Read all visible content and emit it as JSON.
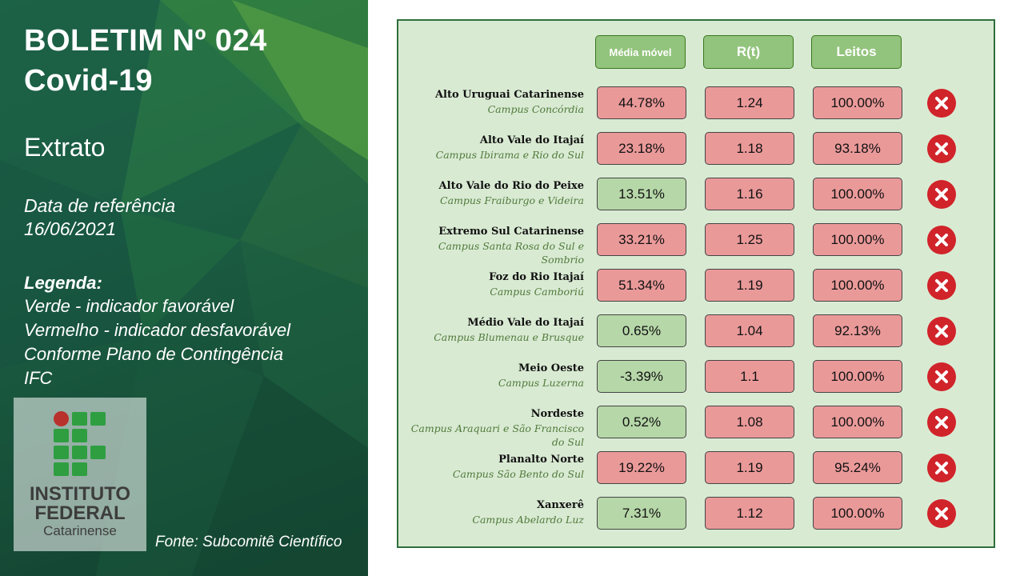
{
  "left": {
    "title_line1": "BOLETIM Nº 024",
    "title_line2": "Covid-19",
    "subtitle": "Extrato",
    "reference_label": "Data de referência",
    "reference_date": "16/06/2021",
    "legend_title": "Legenda:",
    "legend_lines": [
      "Verde - indicador favorável",
      "Vermelho - indicador desfavorável",
      "Conforme Plano de Contingência",
      "IFC"
    ],
    "source": "Fonte: Subcomitê Científico",
    "logo": {
      "line1": "INSTITUTO",
      "line2": "FEDERAL",
      "line3": "Catarinense"
    }
  },
  "colors": {
    "favorable": "#b6d7a8",
    "unfavorable": "#ea9999",
    "header": "#93c47d",
    "status_bad": "#d1232a"
  },
  "table": {
    "headers": {
      "media_movel": "Média móvel",
      "rt": "R(t)",
      "leitos": "Leitos"
    },
    "rows": [
      {
        "region": "Alto Uruguai Catarinense",
        "campus": "Campus Concórdia",
        "media": "44.78%",
        "media_status": "red",
        "rt": "1.24",
        "rt_status": "red",
        "leitos": "100.00%",
        "leitos_status": "red",
        "overall_icon": "x-circle-icon"
      },
      {
        "region": "Alto Vale do Itajaí",
        "campus": "Campus Ibirama e Rio do Sul",
        "media": "23.18%",
        "media_status": "red",
        "rt": "1.18",
        "rt_status": "red",
        "leitos": "93.18%",
        "leitos_status": "red",
        "overall_icon": "x-circle-icon"
      },
      {
        "region": "Alto Vale do Rio do Peixe",
        "campus": "Campus Fraiburgo e Videira",
        "media": "13.51%",
        "media_status": "green",
        "rt": "1.16",
        "rt_status": "red",
        "leitos": "100.00%",
        "leitos_status": "red",
        "overall_icon": "x-circle-icon"
      },
      {
        "region": "Extremo Sul Catarinense",
        "campus": "Campus Santa Rosa do Sul e Sombrio",
        "media": "33.21%",
        "media_status": "red",
        "rt": "1.25",
        "rt_status": "red",
        "leitos": "100.00%",
        "leitos_status": "red",
        "overall_icon": "x-circle-icon"
      },
      {
        "region": "Foz do Rio Itajaí",
        "campus": "Campus Camboriú",
        "media": "51.34%",
        "media_status": "red",
        "rt": "1.19",
        "rt_status": "red",
        "leitos": "100.00%",
        "leitos_status": "red",
        "overall_icon": "x-circle-icon"
      },
      {
        "region": "Médio Vale do Itajaí",
        "campus": "Campus Blumenau e Brusque",
        "media": "0.65%",
        "media_status": "green",
        "rt": "1.04",
        "rt_status": "red",
        "leitos": "92.13%",
        "leitos_status": "red",
        "overall_icon": "x-circle-icon"
      },
      {
        "region": "Meio Oeste",
        "campus": "Campus Luzerna",
        "media": "-3.39%",
        "media_status": "green",
        "rt": "1.1",
        "rt_status": "red",
        "leitos": "100.00%",
        "leitos_status": "red",
        "overall_icon": "x-circle-icon"
      },
      {
        "region": "Nordeste",
        "campus": "Campus Araquari e São Francisco do Sul",
        "media": "0.52%",
        "media_status": "green",
        "rt": "1.08",
        "rt_status": "red",
        "leitos": "100.00%",
        "leitos_status": "red",
        "overall_icon": "x-circle-icon"
      },
      {
        "region": "Planalto Norte",
        "campus": "Campus São Bento do Sul",
        "media": "19.22%",
        "media_status": "red",
        "rt": "1.19",
        "rt_status": "red",
        "leitos": "95.24%",
        "leitos_status": "red",
        "overall_icon": "x-circle-icon"
      },
      {
        "region": "Xanxerê",
        "campus": "Campus Abelardo Luz",
        "media": "7.31%",
        "media_status": "green",
        "rt": "1.12",
        "rt_status": "red",
        "leitos": "100.00%",
        "leitos_status": "red",
        "overall_icon": "x-circle-icon"
      }
    ]
  }
}
